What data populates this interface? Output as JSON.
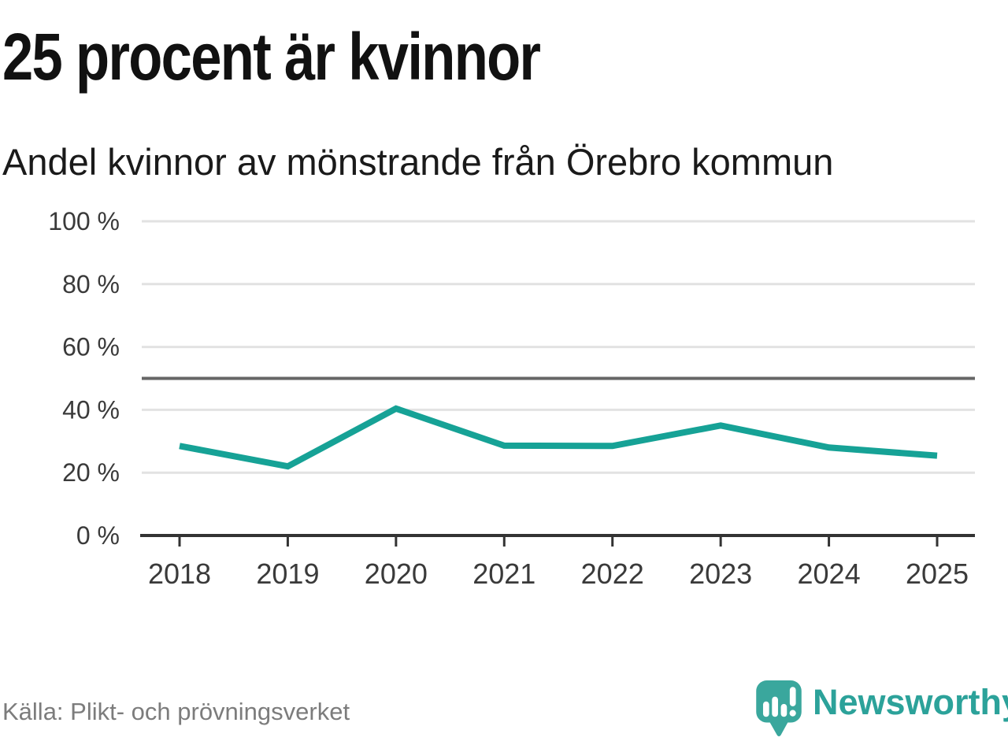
{
  "header": {
    "title": "25 procent är kvinnor",
    "subtitle": "Andel kvinnor av mönstrande från Örebro kommun"
  },
  "chart_data": {
    "type": "line",
    "title": "25 procent är kvinnor",
    "subtitle": "Andel kvinnor av mönstrande från Örebro kommun",
    "categories": [
      "2018",
      "2019",
      "2020",
      "2021",
      "2022",
      "2023",
      "2024",
      "2025"
    ],
    "series": [
      {
        "name": "Andel kvinnor av mönstrande, Örebro kommun (%)",
        "values": [
          28.5,
          22,
          40.4,
          28.6,
          28.5,
          35,
          28,
          25.4
        ]
      }
    ],
    "xlabel": "",
    "ylabel": "",
    "ylim": [
      0,
      100
    ],
    "yticks": [
      0,
      20,
      40,
      60,
      80,
      100
    ],
    "ytick_format": "{v} %",
    "reference_line": 50,
    "grid": true,
    "legend": "none",
    "colors": {
      "line": "#16a296",
      "reference": "#666666",
      "grid": "#e2e2e2",
      "axis": "#333333",
      "tick_label": "#3a3a3a"
    }
  },
  "footer": {
    "source": "Källa: Plikt- och prövningsverket",
    "brand": "Newsworthy",
    "logo_icon": "newsworthy-speech-bubble-barchart-icon",
    "brand_color": "#2ca29a",
    "logo_fill": "#3aa79d"
  }
}
